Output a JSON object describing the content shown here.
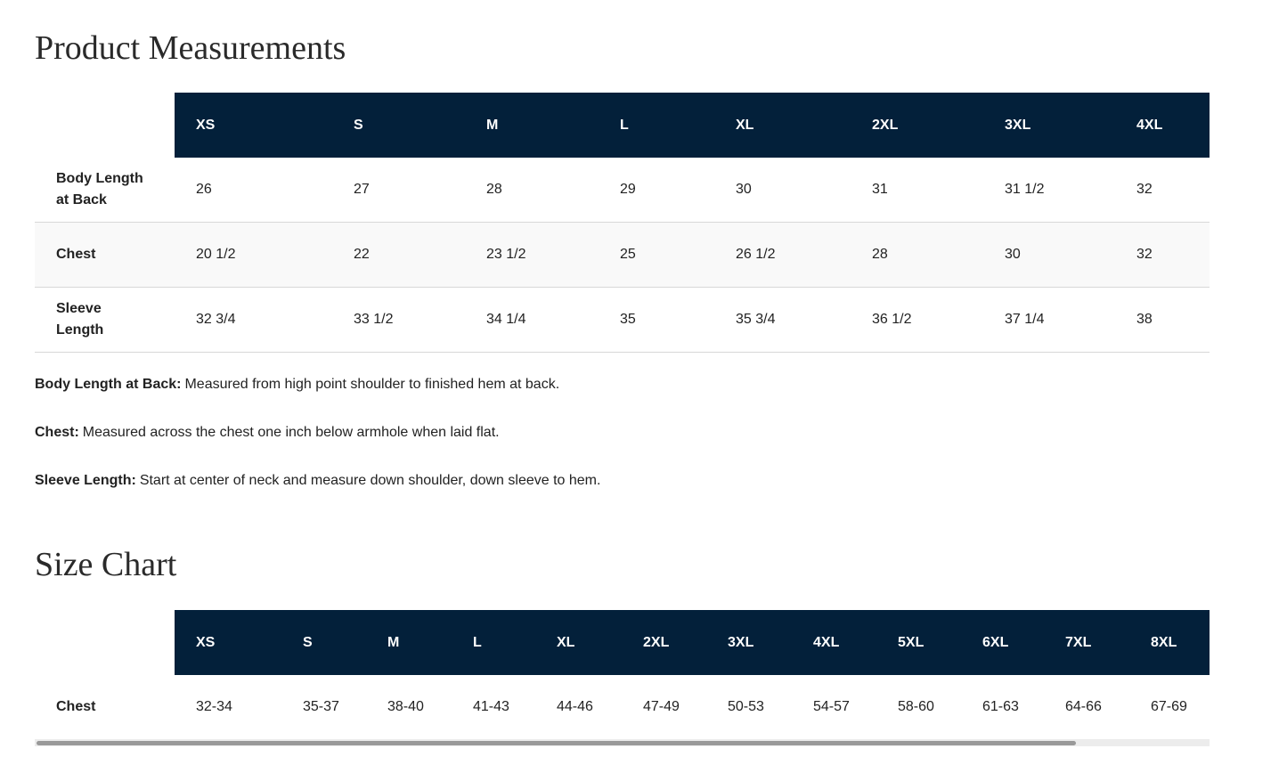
{
  "measurements": {
    "title": "Product Measurements",
    "headers": [
      "XS",
      "S",
      "M",
      "L",
      "XL",
      "2XL",
      "3XL",
      "4XL"
    ],
    "rows": [
      {
        "label": "Body Length at Back",
        "values": [
          "26",
          "27",
          "28",
          "29",
          "30",
          "31",
          "31 1/2",
          "32"
        ]
      },
      {
        "label": "Chest",
        "values": [
          "20 1/2",
          "22",
          "23 1/2",
          "25",
          "26 1/2",
          "28",
          "30",
          "32"
        ]
      },
      {
        "label": "Sleeve Length",
        "values": [
          "32 3/4",
          "33 1/2",
          "34 1/4",
          "35",
          "35 3/4",
          "36 1/2",
          "37 1/4",
          "38"
        ]
      }
    ],
    "notes": [
      {
        "term": "Body Length at Back:",
        "text": "Measured from high point shoulder to finished hem at back."
      },
      {
        "term": "Chest:",
        "text": "Measured across the chest one inch below armhole when laid flat."
      },
      {
        "term": "Sleeve Length:",
        "text": "Start at center of neck and measure down shoulder, down sleeve to hem."
      }
    ]
  },
  "size_chart": {
    "title": "Size Chart",
    "headers": [
      "XS",
      "S",
      "M",
      "L",
      "XL",
      "2XL",
      "3XL",
      "4XL",
      "5XL",
      "6XL",
      "7XL",
      "8XL"
    ],
    "rows": [
      {
        "label": "Chest",
        "values": [
          "32-34",
          "35-37",
          "38-40",
          "41-43",
          "44-46",
          "47-49",
          "50-53",
          "54-57",
          "58-60",
          "61-63",
          "64-66",
          "67-69"
        ]
      }
    ]
  }
}
